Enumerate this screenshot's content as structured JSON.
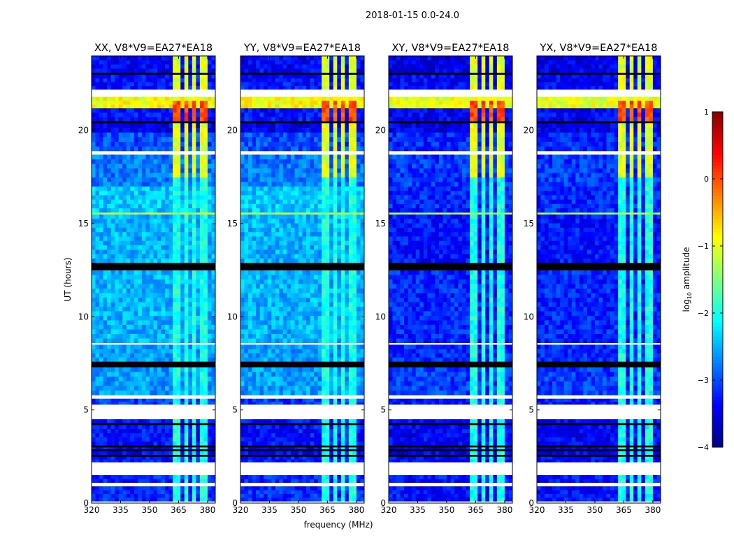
{
  "chart_data": {
    "type": "heatmap",
    "suptitle": "2018-01-15 0.0-24.0",
    "xlabel": "frequency (MHz)",
    "ylabel": "UT (hours)",
    "xlim": [
      320,
      384
    ],
    "ylim": [
      0,
      24
    ],
    "xticks": [
      320,
      335,
      350,
      365,
      380
    ],
    "yticks": [
      0,
      5,
      10,
      15,
      20
    ],
    "colormap": "jet",
    "colorbar": {
      "label_prefix": "log",
      "label_sub": "10",
      "label_suffix": " amplitude",
      "vmin": -4,
      "vmax": 1,
      "ticks": [
        1,
        0,
        -1,
        -2,
        -3,
        -4
      ]
    },
    "panels": [
      {
        "title": "XX, V8*V9=EA27*EA18",
        "kind": "parallel"
      },
      {
        "title": "YY, V8*V9=EA27*EA18",
        "kind": "parallel"
      },
      {
        "title": "XY, V8*V9=EA27*EA18",
        "kind": "cross"
      },
      {
        "title": "YX, V8*V9=EA27*EA18",
        "kind": "cross"
      }
    ],
    "time_bands_note": "[t_start, t_end, log10 amp parallel, log10 amp cross]; 'flag' = flagged (white), 'zero' = zero data (black)",
    "time_bands": [
      [
        0,
        0.1,
        "flag",
        "flag"
      ],
      [
        0.1,
        0.9,
        -3.2,
        -3.3
      ],
      [
        0.9,
        1.1,
        "flag",
        "flag"
      ],
      [
        1.1,
        1.5,
        -3.2,
        -3.3
      ],
      [
        1.5,
        2.2,
        "flag",
        "flag"
      ],
      [
        2.2,
        2.5,
        -3.3,
        -3.4
      ],
      [
        2.5,
        2.6,
        "zero",
        "zero"
      ],
      [
        2.6,
        2.8,
        -3.4,
        -3.5
      ],
      [
        2.8,
        2.9,
        "zero",
        "zero"
      ],
      [
        2.9,
        3.0,
        -3.4,
        -3.5
      ],
      [
        3.0,
        3.1,
        "zero",
        "zero"
      ],
      [
        3.1,
        4.2,
        -3.3,
        -3.4
      ],
      [
        4.2,
        4.3,
        "zero",
        "zero"
      ],
      [
        4.3,
        4.5,
        -3.3,
        -3.4
      ],
      [
        4.5,
        5.3,
        "flag",
        "flag"
      ],
      [
        5.3,
        5.6,
        -3.1,
        -3.3
      ],
      [
        5.6,
        5.8,
        "flag",
        "flag"
      ],
      [
        5.8,
        7.3,
        -2.6,
        -3.1
      ],
      [
        7.3,
        7.6,
        "zero",
        "zero"
      ],
      [
        7.6,
        8.5,
        -2.6,
        -3.2
      ],
      [
        8.5,
        8.6,
        "flag",
        "flag"
      ],
      [
        8.6,
        12.5,
        -2.5,
        -3.2
      ],
      [
        12.5,
        12.9,
        "zero",
        "zero"
      ],
      [
        12.9,
        15.5,
        -2.5,
        -3.3
      ],
      [
        15.5,
        15.6,
        -1.2,
        -1.3
      ],
      [
        15.6,
        17.0,
        -2.4,
        -3.2
      ],
      [
        17.0,
        18.7,
        -2.8,
        -3.1
      ],
      [
        18.7,
        18.9,
        "flag",
        "flag"
      ],
      [
        18.9,
        19.9,
        -3.0,
        -3.2
      ],
      [
        19.9,
        20.4,
        -3.5,
        -3.5
      ],
      [
        20.4,
        20.5,
        "zero",
        "zero"
      ],
      [
        20.5,
        21.2,
        -3.3,
        -3.4
      ],
      [
        21.2,
        21.8,
        -0.9,
        -1.0
      ],
      [
        21.8,
        22.2,
        "flag",
        "flag"
      ],
      [
        22.2,
        23.0,
        -3.3,
        -3.4
      ],
      [
        23.0,
        23.1,
        "zero",
        "zero"
      ],
      [
        23.1,
        24.0,
        -3.4,
        -3.5
      ]
    ],
    "rfi": {
      "channels_mhz": [
        [
          362,
          366
        ],
        [
          368,
          370
        ],
        [
          372,
          374
        ],
        [
          376,
          380
        ]
      ],
      "levels": [
        {
          "t": [
            0,
            17.5
          ],
          "value": -2.0
        },
        {
          "t": [
            17.5,
            24
          ],
          "value": -1.0
        },
        {
          "t": [
            20.5,
            21.6
          ],
          "value": 0.0
        }
      ]
    }
  }
}
